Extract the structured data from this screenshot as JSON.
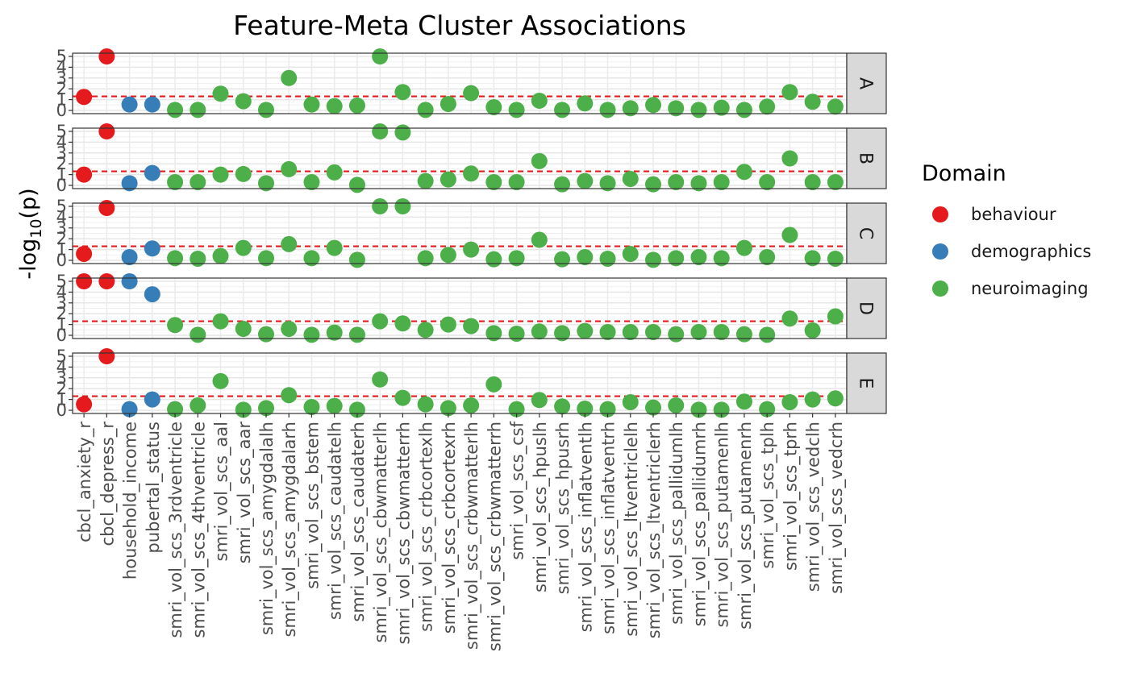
{
  "chart_data": {
    "type": "scatter",
    "title": "Feature-Meta Cluster Associations",
    "ylabel": "-log10(p)",
    "ylabel_base": "-log",
    "ylabel_sub": "10",
    "ylabel_tail": "(p)",
    "ylim": [
      0,
      5
    ],
    "yticks": [
      "0",
      "1",
      "2",
      "3",
      "4",
      "5"
    ],
    "grid": true,
    "legend_position": "right",
    "legend": {
      "title": "Domain",
      "entries": [
        {
          "label": "behaviour",
          "color": "#E41A1C"
        },
        {
          "label": "demographics",
          "color": "#377EB8"
        },
        {
          "label": "neuroimaging",
          "color": "#4DAF4A"
        }
      ]
    },
    "threshold_color": "#E41A1C",
    "categories": [
      "cbcl_anxiety_r",
      "cbcl_depress_r",
      "household_income",
      "pubertal_status",
      "smri_vol_scs_3rdventricle",
      "smri_vol_scs_4thventricle",
      "smri_vol_scs_aal",
      "smri_vol_scs_aar",
      "smri_vol_scs_amygdalalh",
      "smri_vol_scs_amygdalarh",
      "smri_vol_scs_bstem",
      "smri_vol_scs_caudatelh",
      "smri_vol_scs_caudaterh",
      "smri_vol_scs_cbwmatterlh",
      "smri_vol_scs_cbwmatterrh",
      "smri_vol_scs_crbcortexlh",
      "smri_vol_scs_crbcortexrh",
      "smri_vol_scs_crbwmatterlh",
      "smri_vol_scs_crbwmatterrh",
      "smri_vol_scs_csf",
      "smri_vol_scs_hpuslh",
      "smri_vol_scs_hpusrh",
      "smri_vol_scs_inflatventlh",
      "smri_vol_scs_inflatventrh",
      "smri_vol_scs_ltventriclelh",
      "smri_vol_scs_ltventriclerh",
      "smri_vol_scs_pallidumlh",
      "smri_vol_scs_pallidumrh",
      "smri_vol_scs_putamenlh",
      "smri_vol_scs_putamenrh",
      "smri_vol_scs_tplh",
      "smri_vol_scs_tprh",
      "smri_vol_scs_vedclh",
      "smri_vol_scs_vedcrh"
    ],
    "domains": [
      "behaviour",
      "behaviour",
      "demographics",
      "demographics",
      "neuroimaging",
      "neuroimaging",
      "neuroimaging",
      "neuroimaging",
      "neuroimaging",
      "neuroimaging",
      "neuroimaging",
      "neuroimaging",
      "neuroimaging",
      "neuroimaging",
      "neuroimaging",
      "neuroimaging",
      "neuroimaging",
      "neuroimaging",
      "neuroimaging",
      "neuroimaging",
      "neuroimaging",
      "neuroimaging",
      "neuroimaging",
      "neuroimaging",
      "neuroimaging",
      "neuroimaging",
      "neuroimaging",
      "neuroimaging",
      "neuroimaging",
      "neuroimaging",
      "neuroimaging",
      "neuroimaging",
      "neuroimaging",
      "neuroimaging"
    ],
    "panels": [
      {
        "name": "A",
        "threshold": 1.3,
        "values": [
          1.25,
          5.0,
          0.55,
          0.55,
          0.05,
          0.05,
          1.55,
          0.85,
          0.05,
          3.0,
          0.55,
          0.4,
          0.45,
          5.0,
          1.7,
          0.05,
          0.6,
          1.6,
          0.3,
          0.05,
          0.9,
          0.05,
          0.65,
          0.05,
          0.2,
          0.5,
          0.2,
          0.05,
          0.25,
          0.05,
          0.35,
          1.7,
          0.8,
          0.35
        ]
      },
      {
        "name": "B",
        "threshold": 1.3,
        "values": [
          1.0,
          5.0,
          0.2,
          1.15,
          0.3,
          0.3,
          1.0,
          1.05,
          0.2,
          1.5,
          0.3,
          1.2,
          0.05,
          5.0,
          4.9,
          0.4,
          0.55,
          1.1,
          0.3,
          0.3,
          2.25,
          0.1,
          0.4,
          0.2,
          0.6,
          0.1,
          0.3,
          0.2,
          0.3,
          1.25,
          0.3,
          2.5,
          0.3,
          0.3
        ]
      },
      {
        "name": "C",
        "threshold": 1.3,
        "values": [
          0.6,
          4.85,
          0.3,
          1.1,
          0.2,
          0.15,
          0.4,
          1.15,
          0.2,
          1.5,
          0.2,
          1.15,
          0.05,
          5.0,
          5.0,
          0.2,
          0.5,
          1.0,
          0.1,
          0.2,
          1.9,
          0.1,
          0.3,
          0.15,
          0.6,
          0.05,
          0.2,
          0.3,
          0.2,
          1.15,
          0.3,
          2.35,
          0.2,
          0.15
        ]
      },
      {
        "name": "D",
        "threshold": 1.3,
        "values": [
          5.0,
          5.0,
          5.0,
          3.8,
          0.95,
          0.05,
          1.3,
          0.6,
          0.1,
          0.6,
          0.05,
          0.25,
          0.05,
          1.3,
          1.1,
          0.5,
          1.0,
          0.85,
          0.2,
          0.15,
          0.35,
          0.2,
          0.4,
          0.3,
          0.3,
          0.3,
          0.1,
          0.3,
          0.3,
          0.1,
          0.05,
          1.55,
          0.45,
          1.75
        ]
      },
      {
        "name": "E",
        "threshold": 1.3,
        "values": [
          0.55,
          5.0,
          0.1,
          1.0,
          0.1,
          0.45,
          2.7,
          0.05,
          0.2,
          1.4,
          0.3,
          0.4,
          0.05,
          2.85,
          1.15,
          0.55,
          0.2,
          0.45,
          2.4,
          0.1,
          0.95,
          0.35,
          0.15,
          0.1,
          0.75,
          0.25,
          0.45,
          0.05,
          0.05,
          0.8,
          0.1,
          0.75,
          1.0,
          1.1
        ]
      }
    ]
  }
}
